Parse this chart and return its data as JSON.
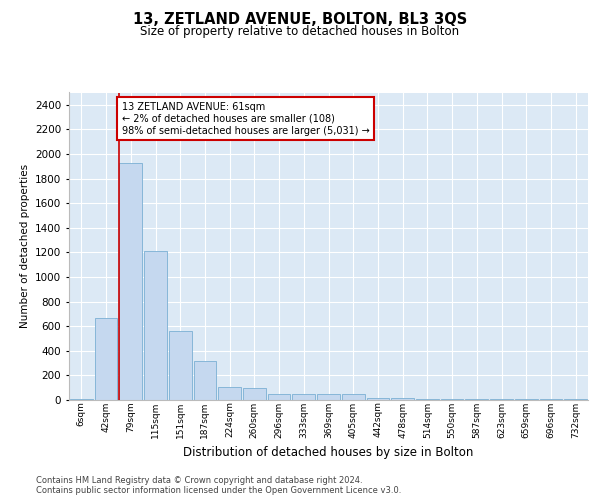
{
  "title": "13, ZETLAND AVENUE, BOLTON, BL3 3QS",
  "subtitle": "Size of property relative to detached houses in Bolton",
  "xlabel": "Distribution of detached houses by size in Bolton",
  "ylabel": "Number of detached properties",
  "bar_color": "#c5d8ef",
  "bar_edge_color": "#7aafd4",
  "background_color": "#dce9f5",
  "annotation_text": "13 ZETLAND AVENUE: 61sqm\n← 2% of detached houses are smaller (108)\n98% of semi-detached houses are larger (5,031) →",
  "annotation_box_color": "#ffffff",
  "annotation_box_edge": "#cc0000",
  "vline_color": "#cc0000",
  "categories": [
    "6sqm",
    "42sqm",
    "79sqm",
    "115sqm",
    "151sqm",
    "187sqm",
    "224sqm",
    "260sqm",
    "296sqm",
    "333sqm",
    "369sqm",
    "405sqm",
    "442sqm",
    "478sqm",
    "514sqm",
    "550sqm",
    "587sqm",
    "623sqm",
    "659sqm",
    "696sqm",
    "732sqm"
  ],
  "values": [
    5,
    670,
    1930,
    1210,
    560,
    320,
    105,
    100,
    45,
    45,
    45,
    45,
    15,
    15,
    5,
    5,
    5,
    5,
    5,
    5,
    5
  ],
  "ylim": [
    0,
    2500
  ],
  "yticks": [
    0,
    200,
    400,
    600,
    800,
    1000,
    1200,
    1400,
    1600,
    1800,
    2000,
    2200,
    2400
  ],
  "footer_text": "Contains HM Land Registry data © Crown copyright and database right 2024.\nContains public sector information licensed under the Open Government Licence v3.0.",
  "fig_width": 6.0,
  "fig_height": 5.0,
  "dpi": 100
}
